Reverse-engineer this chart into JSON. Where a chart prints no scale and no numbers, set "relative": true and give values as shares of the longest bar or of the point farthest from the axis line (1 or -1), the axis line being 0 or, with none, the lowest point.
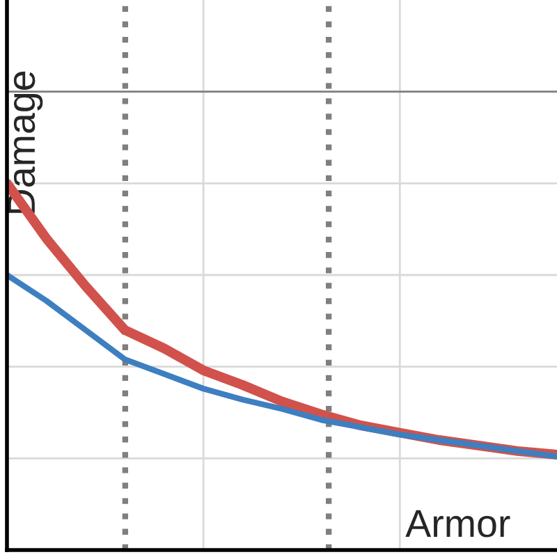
{
  "chart_data": {
    "type": "line",
    "relative": true,
    "xlabel": "Armor",
    "ylabel": "Damage",
    "categories": [
      null,
      null,
      null,
      null,
      null,
      null,
      null,
      null,
      null,
      null,
      null,
      null,
      null,
      null,
      null
    ],
    "series": [
      {
        "color": "#d1524c",
        "values": [
          1.0,
          0.85,
          0.72,
          0.6,
          0.55,
          0.49,
          0.45,
          0.405,
          0.37,
          0.34,
          0.32,
          0.3,
          0.285,
          0.27,
          0.26
        ]
      },
      {
        "color": "#3d7fc1",
        "values": [
          0.75,
          0.68,
          0.6,
          0.52,
          0.48,
          0.44,
          0.41,
          0.385,
          0.355,
          0.335,
          0.315,
          0.3,
          0.285,
          0.27,
          0.255
        ]
      }
    ],
    "ref_lines": [
      {
        "axis": "y",
        "value": 1.25,
        "color": "#808080",
        "line_style": "solid"
      }
    ],
    "grid": true,
    "legend": false,
    "marker": "none",
    "line_style": "solid"
  }
}
